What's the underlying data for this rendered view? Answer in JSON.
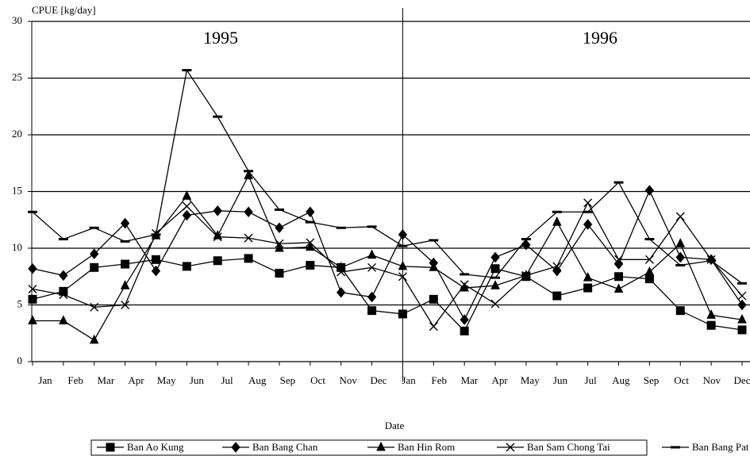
{
  "chart_data": {
    "type": "line",
    "y_axis_label": "CPUE [kg/day]",
    "x_axis_label": "Date",
    "annotations": [
      "1995",
      "1996"
    ],
    "categories": [
      "Jan",
      "Feb",
      "Mar",
      "Apr",
      "May",
      "Jun",
      "Jul",
      "Aug",
      "Sep",
      "Oct",
      "Nov",
      "Dec",
      "Jan",
      "Feb",
      "Mar",
      "Apr",
      "May",
      "Jun",
      "Jul",
      "Aug",
      "Sep",
      "Oct",
      "Nov",
      "Dec"
    ],
    "series": [
      {
        "name": "Ban Ao Kung",
        "color": "#000000",
        "marker": "square",
        "values": [
          5.5,
          6.2,
          8.3,
          8.6,
          9.0,
          8.4,
          8.9,
          9.1,
          7.8,
          8.5,
          8.3,
          4.5,
          4.2,
          5.5,
          2.7,
          8.2,
          7.5,
          5.8,
          6.5,
          7.5,
          7.3,
          4.5,
          3.2,
          2.8
        ]
      },
      {
        "name": "Ban Bang Chan",
        "color": "#000000",
        "marker": "diamond",
        "values": [
          8.2,
          7.6,
          9.5,
          12.2,
          8.0,
          12.9,
          13.3,
          13.2,
          11.8,
          13.2,
          6.1,
          5.7,
          11.2,
          8.7,
          3.7,
          9.2,
          10.3,
          8.0,
          12.1,
          8.6,
          15.1,
          9.2,
          9.0,
          5.0
        ]
      },
      {
        "name": "Ban Hin Rom",
        "color": "#000000",
        "marker": "triangle",
        "values": [
          3.6,
          3.6,
          1.9,
          6.7,
          11.1,
          14.6,
          11.1,
          16.4,
          10.0,
          10.1,
          8.3,
          9.4,
          8.4,
          8.3,
          6.5,
          6.7,
          7.6,
          12.3,
          7.4,
          6.4,
          7.9,
          10.4,
          4.1,
          3.7
        ]
      },
      {
        "name": "Ban Sam Chong Tai",
        "color": "#000000",
        "marker": "x",
        "values": [
          6.4,
          5.9,
          4.8,
          5.0,
          11.3,
          13.7,
          11.0,
          10.9,
          10.4,
          10.5,
          7.9,
          8.3,
          7.5,
          3.1,
          6.8,
          5.1,
          7.6,
          8.4,
          14.0,
          9.0,
          9.0,
          12.8,
          9.0,
          5.8
        ]
      },
      {
        "name": "Ban Bang Pat",
        "color": "#000000",
        "marker": "dash",
        "values": [
          13.2,
          10.8,
          11.8,
          10.6,
          11.2,
          25.7,
          21.6,
          16.8,
          13.4,
          12.3,
          11.8,
          11.9,
          10.2,
          10.7,
          7.7,
          7.4,
          10.8,
          13.2,
          13.2,
          15.8,
          10.8,
          8.5,
          8.9,
          6.9
        ]
      }
    ],
    "ylim": [
      0,
      30
    ],
    "yticks": [
      0,
      5,
      10,
      15,
      20,
      25,
      30
    ],
    "grid": true
  }
}
